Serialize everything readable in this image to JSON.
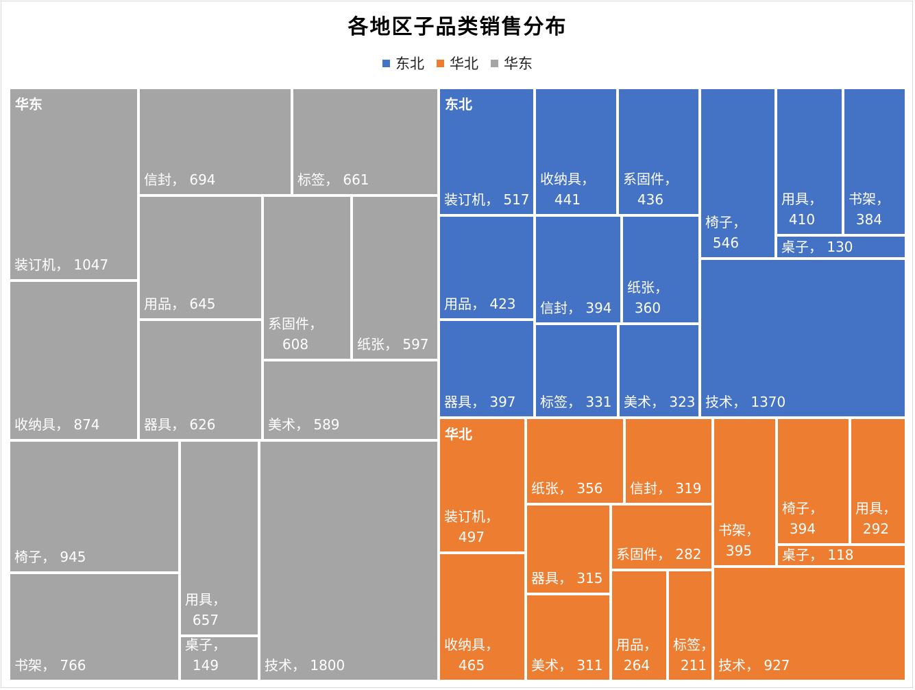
{
  "chart_data": {
    "type": "treemap",
    "title": "各地区子品类销售分布",
    "legend": {
      "placement": "top",
      "entries": [
        "东北",
        "华北",
        "华东"
      ]
    },
    "colors": {
      "东北": "#4472c4",
      "华北": "#ed7d31",
      "华东": "#a5a5a5"
    },
    "label_separator": "，",
    "regions": [
      {
        "name": "华东",
        "items": [
          {
            "name": "装订机",
            "value": 1047
          },
          {
            "name": "信封",
            "value": 694
          },
          {
            "name": "标签",
            "value": 661
          },
          {
            "name": "用品",
            "value": 645
          },
          {
            "name": "系固件",
            "value": 608
          },
          {
            "name": "纸张",
            "value": 597
          },
          {
            "name": "收纳具",
            "value": 874
          },
          {
            "name": "器具",
            "value": 626
          },
          {
            "name": "美术",
            "value": 589
          },
          {
            "name": "椅子",
            "value": 945
          },
          {
            "name": "书架",
            "value": 766
          },
          {
            "name": "用具",
            "value": 657
          },
          {
            "name": "桌子",
            "value": 149
          },
          {
            "name": "技术",
            "value": 1800
          }
        ]
      },
      {
        "name": "东北",
        "items": [
          {
            "name": "装订机",
            "value": 517
          },
          {
            "name": "收纳具",
            "value": 441
          },
          {
            "name": "系固件",
            "value": 436
          },
          {
            "name": "椅子",
            "value": 546
          },
          {
            "name": "用具",
            "value": 410
          },
          {
            "name": "书架",
            "value": 384
          },
          {
            "name": "桌子",
            "value": 130
          },
          {
            "name": "用品",
            "value": 423
          },
          {
            "name": "信封",
            "value": 394
          },
          {
            "name": "纸张",
            "value": 360
          },
          {
            "name": "器具",
            "value": 397
          },
          {
            "name": "标签",
            "value": 331
          },
          {
            "name": "美术",
            "value": 323
          },
          {
            "name": "技术",
            "value": 1370
          }
        ]
      },
      {
        "name": "华北",
        "items": [
          {
            "name": "装订机",
            "value": 497
          },
          {
            "name": "纸张",
            "value": 356
          },
          {
            "name": "信封",
            "value": 319
          },
          {
            "name": "器具",
            "value": 315
          },
          {
            "name": "系固件",
            "value": 282
          },
          {
            "name": "书架",
            "value": 395
          },
          {
            "name": "椅子",
            "value": 394
          },
          {
            "name": "用具",
            "value": 292
          },
          {
            "name": "桌子",
            "value": 118
          },
          {
            "name": "收纳具",
            "value": 465
          },
          {
            "name": "美术",
            "value": 311
          },
          {
            "name": "用品",
            "value": 264
          },
          {
            "name": "标签",
            "value": 211
          },
          {
            "name": "技术",
            "value": 927
          }
        ]
      }
    ]
  }
}
